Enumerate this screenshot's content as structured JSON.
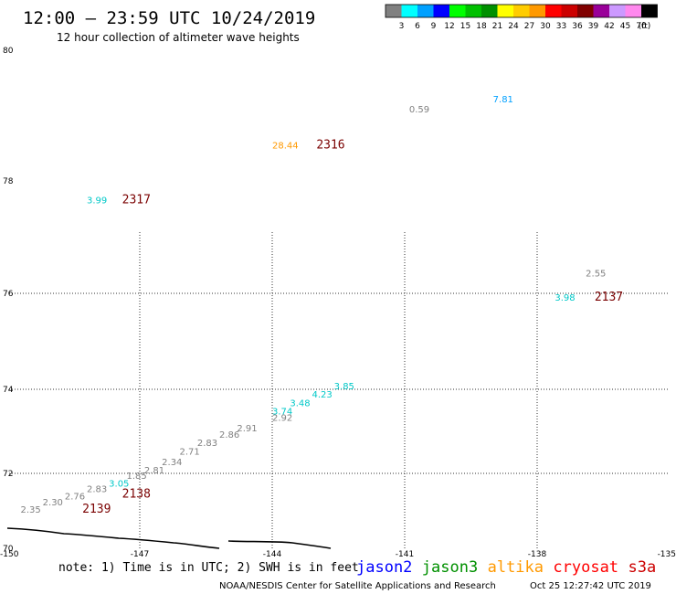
{
  "header": {
    "title": "12:00 — 23:59 UTC 10/24/2019",
    "subtitle": "12 hour collection of altimeter wave heights"
  },
  "color_scale": {
    "labels": [
      "3",
      "6",
      "9",
      "12",
      "15",
      "18",
      "21",
      "24",
      "27",
      "30",
      "33",
      "36",
      "39",
      "42",
      "45",
      "70"
    ],
    "unit": "(ft)",
    "colors": [
      "#808080",
      "#00ffff",
      "#00a0ff",
      "#0000ff",
      "#00ff00",
      "#00c000",
      "#009000",
      "#ffff00",
      "#ffcc00",
      "#ff9900",
      "#ff0000",
      "#cc0000",
      "#800000",
      "#990099",
      "#cc99ff",
      "#ff88ee",
      "#000000"
    ]
  },
  "chart_data": {
    "type": "scatter",
    "title": "12:00 — 23:59 UTC 10/24/2019",
    "subtitle": "12 hour collection of altimeter wave heights",
    "xlabel": "",
    "ylabel": "",
    "xlim": [
      -150,
      -135
    ],
    "ylim": [
      70,
      80
    ],
    "x_ticks": [
      "-150",
      "-147",
      "-144",
      "-141",
      "-138",
      "-135"
    ],
    "y_ticks": [
      "80",
      "78",
      "76",
      "74",
      "72",
      "70"
    ],
    "grid_lon": [
      -147,
      -144,
      -141,
      -138
    ],
    "grid_lat": [
      76,
      74,
      72
    ],
    "grid": true,
    "value_labels": [
      {
        "lon": -140.9,
        "lat": 79.05,
        "text": "0.59",
        "color": "#808080"
      },
      {
        "lon": -139.0,
        "lat": 79.2,
        "text": "7.81",
        "color": "#00a0ff"
      },
      {
        "lon": -144.0,
        "lat": 78.5,
        "text": "28.44",
        "color": "#ff9900"
      },
      {
        "lon": -148.2,
        "lat": 77.6,
        "text": "3.99",
        "color": "#00c8c8"
      },
      {
        "lon": -136.9,
        "lat": 76.3,
        "text": "2.55",
        "color": "#808080"
      },
      {
        "lon": -137.6,
        "lat": 75.85,
        "text": "3.98",
        "color": "#00c8c8"
      },
      {
        "lon": -142.6,
        "lat": 74.0,
        "text": "3.85",
        "color": "#00c8c8"
      },
      {
        "lon": -143.1,
        "lat": 73.8,
        "text": "4.23",
        "color": "#00c8c8"
      },
      {
        "lon": -143.6,
        "lat": 73.6,
        "text": "3.48",
        "color": "#00c8c8"
      },
      {
        "lon": -144.0,
        "lat": 73.4,
        "text": "3.74",
        "color": "#00c8c8"
      },
      {
        "lon": -144.0,
        "lat": 73.25,
        "text": "2.92",
        "color": "#808080"
      },
      {
        "lon": -144.8,
        "lat": 73.0,
        "text": "2.91",
        "color": "#808080"
      },
      {
        "lon": -145.2,
        "lat": 72.85,
        "text": "2.86",
        "color": "#808080"
      },
      {
        "lon": -145.7,
        "lat": 72.65,
        "text": "2.83",
        "color": "#808080"
      },
      {
        "lon": -146.1,
        "lat": 72.45,
        "text": "2.71",
        "color": "#808080"
      },
      {
        "lon": -146.5,
        "lat": 72.2,
        "text": "2.34",
        "color": "#808080"
      },
      {
        "lon": -146.9,
        "lat": 72.0,
        "text": "2.81",
        "color": "#808080"
      },
      {
        "lon": -147.3,
        "lat": 71.85,
        "text": "1.85",
        "color": "#808080"
      },
      {
        "lon": -147.7,
        "lat": 71.65,
        "text": "3.05",
        "color": "#00c8c8"
      },
      {
        "lon": -148.2,
        "lat": 71.5,
        "text": "2.83",
        "color": "#808080"
      },
      {
        "lon": -148.7,
        "lat": 71.3,
        "text": "2.76",
        "color": "#808080"
      },
      {
        "lon": -149.2,
        "lat": 71.15,
        "text": "2.30",
        "color": "#808080"
      },
      {
        "lon": -149.7,
        "lat": 70.95,
        "text": "2.35",
        "color": "#808080"
      }
    ],
    "pass_labels": [
      {
        "lon": -143.0,
        "lat": 78.5,
        "text": "2316"
      },
      {
        "lon": -147.4,
        "lat": 77.6,
        "text": "2317"
      },
      {
        "lon": -136.7,
        "lat": 75.85,
        "text": "2137"
      },
      {
        "lon": -147.4,
        "lat": 71.35,
        "text": "2138"
      },
      {
        "lon": -148.3,
        "lat": 70.95,
        "text": "2139"
      }
    ]
  },
  "footer": {
    "note": "note: 1) Time is in UTC; 2) SWH is in feet",
    "satellites": [
      {
        "name": "jason2",
        "color": "#0000ff"
      },
      {
        "name": "jason3",
        "color": "#009000"
      },
      {
        "name": "altika",
        "color": "#ff9900"
      },
      {
        "name": "cryosat",
        "color": "#ff0000"
      },
      {
        "name": "s3a",
        "color": "#cc0000"
      }
    ],
    "credit": "NOAA/NESDIS Center for Satellite Applications and Research",
    "timestamp": "Oct 25 12:27:42 UTC 2019"
  }
}
